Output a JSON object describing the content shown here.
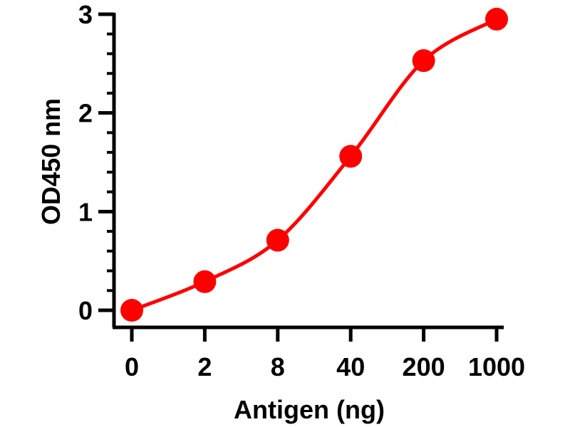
{
  "chart_data": {
    "type": "line",
    "title": "",
    "xlabel": "Antigen (ng)",
    "ylabel": "OD450 nm",
    "categories": [
      "0",
      "2",
      "8",
      "40",
      "200",
      "1000"
    ],
    "x_scale": "categorical",
    "yticks": [
      "0",
      "1",
      "2",
      "3"
    ],
    "ylim": [
      0,
      3
    ],
    "grid": false,
    "legend": "none",
    "series": [
      {
        "values": [
          0.0,
          0.29,
          0.71,
          1.56,
          2.53,
          2.95
        ],
        "color": "#ff0000",
        "marker": "circle",
        "line": "smooth"
      }
    ]
  }
}
